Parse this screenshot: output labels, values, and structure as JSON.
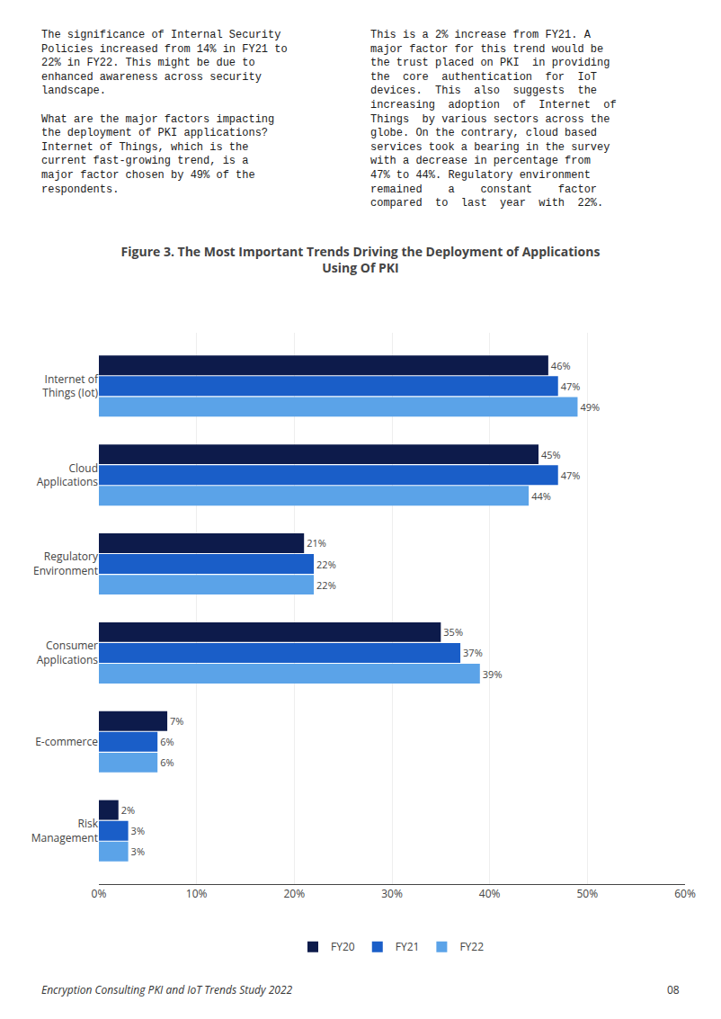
{
  "chart_data": {
    "type": "bar",
    "orientation": "horizontal",
    "title": "Figure 3. The Most Important Trends Driving the Deployment of Applications\nUsing Of PKI",
    "categories": [
      "Risk\nManagement",
      "E-commerce",
      "Consumer\nApplications",
      "Regulatory\nEnvironment",
      "Cloud\nApplications",
      "Internet of\nThings (Iot)"
    ],
    "series": [
      {
        "name": "FY20",
        "color": "#0d1b4b",
        "values": [
          2,
          7,
          35,
          21,
          45,
          46
        ],
        "value_labels": [
          "2%",
          "7%",
          "35%",
          "21%",
          "45%",
          "46%"
        ]
      },
      {
        "name": "FY21",
        "color": "#1a5ec8",
        "values": [
          3,
          6,
          37,
          22,
          47,
          47
        ],
        "value_labels": [
          "3%",
          "6%",
          "37%",
          "22%",
          "47%",
          "47%"
        ]
      },
      {
        "name": "FY22",
        "color": "#5ba3e8",
        "values": [
          3,
          6,
          39,
          22,
          44,
          49
        ],
        "value_labels": [
          "3%",
          "6%",
          "39%",
          "22%",
          "44%",
          "49%"
        ]
      }
    ],
    "xlim": [
      0,
      60
    ],
    "xticks": [
      {
        "value": 0,
        "label": "0%"
      },
      {
        "value": 10,
        "label": "10%"
      },
      {
        "value": 20,
        "label": "20%"
      },
      {
        "value": 30,
        "label": "30%"
      },
      {
        "value": 40,
        "label": "40%"
      },
      {
        "value": 50,
        "label": "50%"
      },
      {
        "value": 60,
        "label": "60%"
      }
    ],
    "grid": true,
    "data_labels": true,
    "legend": "bottom",
    "annotations": [
      "The significance of Internal Security\nPolicies increased from 14% in FY21 to\n22% in FY22. This might be due to\nenhanced awareness across security\nlandscape.\n\nWhat are the major factors impacting\nthe deployment of PKI applications?\nInternet of Things, which is the\ncurrent fast-growing trend, is a\nmajor factor chosen by 49% of the\nrespondents.",
      "This is a 2% increase from FY21. A\nmajor factor for this trend would be\nthe trust placed on PKI  in providing\nthe  core  authentication  for  IoT\ndevices.  This  also  suggests  the\nincreasing  adoption  of  Internet  of\nThings  by various sectors across the\nglobe. On the contrary, cloud based\nservices took a bearing in the survey\nwith a decrease in percentage from\n47% to 44%. Regulatory environment\nremained    a    constant    factor\ncompared  to  last  year  with  22%.",
      "Encryption Consulting PKI and IoT Trends Study 2022",
      "08"
    ]
  }
}
